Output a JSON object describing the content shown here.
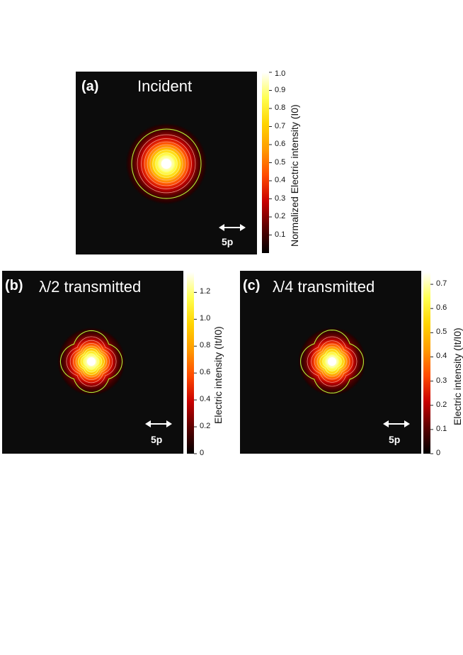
{
  "chart_data": [
    {
      "type": "heatmap",
      "panel_label": "(a)",
      "title": "Incident",
      "scale_bar_label": "5p",
      "colorbar_label": "Normalized Electric intensity (I0)",
      "colorbar_ticks": [
        "0.1",
        "0.2",
        "0.3",
        "0.4",
        "0.5",
        "0.6",
        "0.7",
        "0.8",
        "0.9",
        "1.0"
      ],
      "colorbar_range": [
        0,
        1.0
      ],
      "peak_value": 1.0,
      "shape": "circular",
      "contour_levels": [
        0.1,
        0.2,
        0.3,
        0.4,
        0.5,
        0.6,
        0.7,
        0.8,
        0.9
      ]
    },
    {
      "type": "heatmap",
      "panel_label": "(b)",
      "title": "λ/2 transmitted",
      "scale_bar_label": "5p",
      "colorbar_label": "Electric intensity (It/I0)",
      "colorbar_ticks": [
        "0",
        "0.2",
        "0.4",
        "0.6",
        "0.8",
        "1.0",
        "1.2"
      ],
      "colorbar_range": [
        0,
        1.35
      ],
      "peak_value": 1.35,
      "shape": "diamond",
      "contour_levels": [
        0.1,
        0.25,
        0.4,
        0.55,
        0.7,
        0.85,
        1.0,
        1.15,
        1.3
      ]
    },
    {
      "type": "heatmap",
      "panel_label": "(c)",
      "title": "λ/4 transmitted",
      "scale_bar_label": "5p",
      "colorbar_label": "Electric intensity (It/I0)",
      "colorbar_ticks": [
        "0",
        "0.1",
        "0.2",
        "0.3",
        "0.4",
        "0.5",
        "0.6",
        "0.7"
      ],
      "colorbar_range": [
        0,
        0.75
      ],
      "peak_value": 0.75,
      "shape": "diamond",
      "contour_levels": [
        0.05,
        0.14,
        0.23,
        0.32,
        0.41,
        0.5,
        0.59,
        0.68,
        0.72
      ]
    }
  ],
  "colors": {
    "panel_background": "#0c0c0c",
    "contour_line": "#b8ff3a",
    "colormap": [
      "#000000",
      "#5a0000",
      "#c80000",
      "#ff4a00",
      "#ff9a00",
      "#ffd400",
      "#ffff50",
      "#ffffff"
    ]
  }
}
